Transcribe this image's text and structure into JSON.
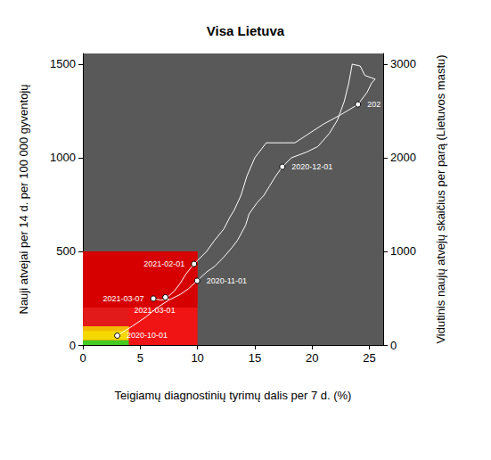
{
  "chart_data": {
    "type": "line",
    "title": "Visa Lietuva",
    "x_label": "Teigiamų diagnostinių tyrimų dalis per 7 d. (%)",
    "y_label": "Nauji atvejai per 14 d. per 100 000 gyventojų",
    "y2_label": "Vidutinis naujų atvejų skaičius per parą (Lietuvos mastu)",
    "xlim": [
      0,
      26.2
    ],
    "xticks": [
      0,
      5,
      10,
      15,
      20,
      25
    ],
    "ylim": [
      0,
      1557
    ],
    "yticks": [
      0,
      500,
      1000,
      1500
    ],
    "y2lim": [
      0,
      3114
    ],
    "y2ticks": [
      0,
      1000,
      2000,
      3000
    ],
    "grid": false,
    "color": "#ffffff",
    "marker": "circle",
    "zones": [
      {
        "x": [
          0,
          10
        ],
        "y": [
          0,
          500
        ],
        "color": "#f01414"
      },
      {
        "x": [
          0,
          10
        ],
        "y": [
          200,
          500
        ],
        "color": "#d60000"
      },
      {
        "x": [
          0,
          4
        ],
        "y": [
          100,
          200
        ],
        "color": "#e31a1a"
      },
      {
        "x": [
          0,
          4
        ],
        "y": [
          25,
          100
        ],
        "color": "#f5d800"
      },
      {
        "x": [
          0,
          4
        ],
        "y": [
          75,
          100
        ],
        "color": "#f5b800"
      },
      {
        "x": [
          0,
          4
        ],
        "y": [
          0,
          25
        ],
        "color": "#44cc22"
      }
    ],
    "x": [
      3.0,
      3.5,
      4.3,
      5.5,
      6.5,
      7.5,
      8.5,
      9.2,
      9.97,
      10.8,
      11.5,
      12.3,
      13.0,
      13.5,
      14.2,
      14.5,
      15.2,
      15.8,
      16.3,
      16.8,
      17.4,
      18.2,
      19.5,
      20.5,
      21.5,
      22.2,
      22.8,
      23.2,
      23.5,
      24.2,
      24.6,
      25.5,
      25.2,
      24.8,
      24.0,
      22.5,
      21.0,
      19.5,
      18.5,
      17.5,
      16.0,
      15.0,
      14.3,
      13.8,
      13.2,
      12.8,
      12.3,
      11.5,
      10.8,
      9.7,
      9.0,
      8.5,
      8.0,
      7.5,
      7.2,
      7.5,
      6.8,
      6.15
    ],
    "values": [
      50,
      70,
      100,
      150,
      200,
      240,
      270,
      300,
      343,
      390,
      420,
      470,
      520,
      560,
      640,
      700,
      760,
      800,
      850,
      900,
      952,
      1000,
      1030,
      1060,
      1130,
      1200,
      1300,
      1400,
      1500,
      1490,
      1440,
      1420,
      1400,
      1350,
      1285,
      1230,
      1180,
      1120,
      1080,
      1080,
      1080,
      1000,
      900,
      800,
      720,
      680,
      620,
      560,
      500,
      433,
      380,
      330,
      290,
      262,
      255,
      245,
      240,
      248
    ],
    "point_labels": [
      "2020-10-01",
      null,
      null,
      null,
      null,
      null,
      null,
      null,
      "2020-11-01",
      null,
      null,
      null,
      null,
      null,
      null,
      null,
      null,
      null,
      null,
      null,
      "2020-12-01",
      null,
      null,
      null,
      null,
      null,
      null,
      null,
      null,
      null,
      null,
      null,
      null,
      null,
      "202",
      null,
      null,
      null,
      null,
      null,
      null,
      null,
      null,
      null,
      null,
      null,
      null,
      null,
      null,
      "2021-02-01",
      null,
      null,
      null,
      null,
      "2021-03-01",
      null,
      null,
      "2021-03-07"
    ]
  }
}
